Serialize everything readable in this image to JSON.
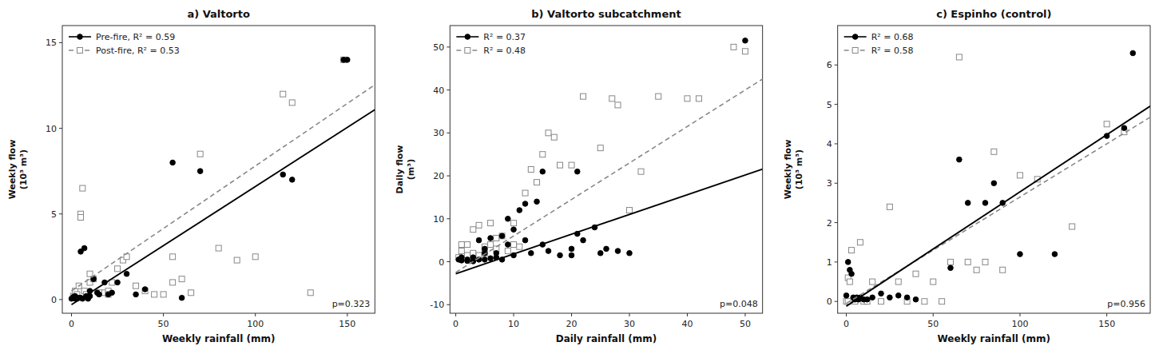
{
  "chart_data": [
    {
      "type": "scatter",
      "title": "a) Valtorto",
      "x_label": "Weekly rainfall (mm)",
      "y_label": "Weekly flow\n(10³ m³)",
      "xlim": [
        -5,
        165
      ],
      "ylim": [
        -0.8,
        16
      ],
      "xticks": [
        0,
        50,
        100,
        150
      ],
      "yticks": [
        0,
        5,
        10,
        15
      ],
      "grid": false,
      "legend": "upper left",
      "annotations": [
        "p=0.323"
      ],
      "series": [
        {
          "name": "Post-fire, R² = 0.53",
          "color": "#888888",
          "marker": "square",
          "line_style": "dashed",
          "x": [
            1,
            2,
            3,
            4,
            5,
            5,
            6,
            7,
            8,
            10,
            10,
            12,
            15,
            18,
            20,
            20,
            22,
            25,
            28,
            30,
            35,
            40,
            45,
            50,
            55,
            55,
            60,
            65,
            70,
            80,
            90,
            100,
            115,
            120,
            130,
            148
          ],
          "values": [
            0.2,
            0.5,
            0.3,
            0.8,
            5.0,
            4.8,
            6.5,
            0.5,
            0.3,
            1.5,
            1.0,
            1.2,
            0.4,
            0.4,
            0.5,
            0.3,
            1.0,
            1.8,
            2.3,
            2.5,
            0.8,
            0.5,
            0.3,
            0.3,
            1.0,
            2.5,
            1.2,
            0.4,
            8.5,
            3.0,
            2.3,
            2.5,
            12.0,
            11.5,
            0.4,
            14.0
          ],
          "fit_x": [
            0,
            165
          ],
          "fit_values": [
            0.5,
            12.545
          ]
        },
        {
          "name": "Pre-fire, R² = 0.59",
          "color": "black",
          "marker": "circle",
          "line_style": "solid",
          "x": [
            0,
            1,
            1,
            2,
            2,
            3,
            4,
            5,
            5,
            6,
            7,
            8,
            9,
            10,
            10,
            12,
            14,
            15,
            18,
            20,
            22,
            25,
            30,
            35,
            40,
            55,
            60,
            70,
            115,
            120,
            148,
            150
          ],
          "values": [
            0.05,
            0.1,
            0.15,
            0.05,
            0.2,
            0.05,
            0.1,
            0.1,
            2.8,
            0.05,
            3.0,
            0.2,
            0.05,
            0.2,
            0.5,
            1.2,
            0.4,
            0.3,
            1.0,
            0.3,
            0.4,
            1.0,
            1.5,
            0.3,
            0.6,
            8.0,
            0.1,
            7.5,
            7.3,
            7.0,
            14.0,
            14.0
          ],
          "fit_x": [
            0,
            165
          ],
          "fit_values": [
            -0.3,
            11.085
          ]
        }
      ]
    },
    {
      "type": "scatter",
      "title": "b) Valtorto subcatchment",
      "x_label": "Daily rainfall (mm)",
      "y_label": "Daily flow\n(m³)",
      "xlim": [
        -1,
        53
      ],
      "ylim": [
        -12,
        55
      ],
      "xticks": [
        0,
        10,
        20,
        30,
        40,
        50
      ],
      "yticks": [
        -10,
        0,
        10,
        20,
        30,
        40,
        50
      ],
      "grid": false,
      "legend": "upper left",
      "annotations": [
        "p=0.048"
      ],
      "series": [
        {
          "name": "R² = 0.48",
          "color": "#888888",
          "marker": "square",
          "line_style": "dashed",
          "x": [
            0.5,
            1,
            1,
            2,
            2,
            3,
            3,
            4,
            4,
            5,
            5,
            6,
            6,
            7,
            7,
            8,
            9,
            10,
            10,
            11,
            12,
            13,
            14,
            15,
            16,
            17,
            18,
            20,
            22,
            25,
            27,
            28,
            30,
            32,
            35,
            40,
            42,
            48,
            50
          ],
          "values": [
            1.0,
            4.0,
            2.5,
            1.5,
            4.0,
            2.0,
            7.5,
            8.5,
            1.5,
            3.5,
            2.0,
            4.0,
            9.0,
            5.5,
            3.0,
            6.0,
            2.5,
            9.0,
            4.0,
            3.5,
            16.0,
            21.5,
            18.5,
            25.0,
            30.0,
            29.0,
            22.5,
            22.5,
            38.5,
            26.5,
            38.0,
            36.5,
            12.0,
            21.0,
            38.5,
            38.0,
            38.0,
            50.0,
            49.0
          ],
          "fit_x": [
            0,
            53
          ],
          "fit_values": [
            -2.5,
            42.55
          ]
        },
        {
          "name": "R² = 0.37",
          "color": "black",
          "marker": "circle",
          "line_style": "solid",
          "x": [
            0.5,
            1,
            1,
            2,
            2,
            3,
            3,
            4,
            4,
            5,
            5,
            5,
            6,
            6,
            7,
            7,
            8,
            8,
            9,
            9,
            10,
            10,
            11,
            12,
            12,
            13,
            14,
            15,
            15,
            16,
            18,
            20,
            20,
            21,
            21,
            22,
            24,
            25,
            26,
            28,
            30,
            50
          ],
          "values": [
            0.5,
            0.3,
            1.0,
            0.2,
            0.5,
            0.1,
            1.0,
            0.5,
            5.0,
            2.0,
            3.0,
            0.5,
            0.8,
            5.5,
            1.0,
            2.0,
            0.5,
            6.0,
            4.0,
            10.0,
            1.5,
            7.5,
            12.0,
            5.0,
            13.5,
            2.0,
            14.0,
            21.0,
            4.0,
            2.5,
            1.5,
            1.5,
            3.0,
            21.0,
            6.5,
            5.0,
            8.0,
            2.0,
            3.0,
            2.5,
            2.0,
            51.5
          ],
          "fit_x": [
            0,
            53
          ],
          "fit_values": [
            -2.8,
            21.58
          ]
        }
      ]
    },
    {
      "type": "scatter",
      "title": "c) Espinho (control)",
      "x_label": "Weekly rainfall (mm)",
      "y_label": "Weekly flow\n(10³ m³)",
      "xlim": [
        -5,
        175
      ],
      "ylim": [
        -0.3,
        7
      ],
      "xticks": [
        0,
        50,
        100,
        150
      ],
      "yticks": [
        0,
        1,
        2,
        3,
        4,
        5,
        6
      ],
      "grid": false,
      "legend": "upper left",
      "annotations": [
        "p=0.956"
      ],
      "series": [
        {
          "name": "R² = 0.58",
          "color": "#888888",
          "marker": "square",
          "line_style": "dashed",
          "x": [
            0,
            1,
            1,
            2,
            3,
            5,
            8,
            10,
            12,
            15,
            20,
            25,
            30,
            35,
            40,
            45,
            50,
            55,
            60,
            65,
            70,
            75,
            80,
            85,
            90,
            100,
            110,
            130,
            150,
            160
          ],
          "values": [
            0.0,
            0.0,
            0.6,
            0.5,
            1.3,
            0.0,
            1.5,
            0.0,
            0.0,
            0.5,
            0.0,
            2.4,
            0.5,
            0.0,
            0.7,
            0.0,
            0.5,
            0.0,
            1.0,
            6.2,
            1.0,
            0.8,
            1.0,
            3.8,
            0.8,
            3.2,
            3.1,
            1.9,
            4.5,
            4.3
          ],
          "fit_x": [
            0,
            175
          ],
          "fit_values": [
            -0.05,
            4.675
          ]
        },
        {
          "name": "R² = 0.68",
          "color": "black",
          "marker": "circle",
          "line_style": "solid",
          "x": [
            0,
            1,
            2,
            3,
            4,
            5,
            6,
            7,
            8,
            10,
            12,
            15,
            20,
            25,
            30,
            35,
            40,
            60,
            65,
            70,
            80,
            85,
            90,
            100,
            120,
            150,
            160,
            165
          ],
          "values": [
            0.15,
            1.0,
            0.8,
            0.7,
            0.1,
            0.05,
            0.1,
            0.05,
            0.1,
            0.05,
            0.05,
            0.1,
            0.2,
            0.1,
            0.15,
            0.1,
            0.05,
            0.85,
            3.6,
            2.5,
            2.5,
            3.0,
            2.5,
            1.2,
            1.2,
            4.2,
            4.4,
            6.3
          ],
          "fit_x": [
            0,
            175
          ],
          "fit_values": [
            -0.12,
            4.955
          ]
        }
      ]
    }
  ]
}
